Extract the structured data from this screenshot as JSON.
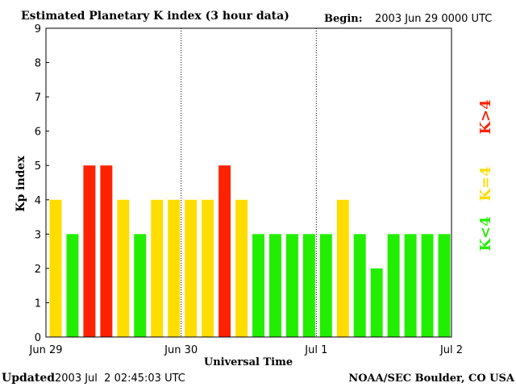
{
  "chart_data": {
    "type": "bar",
    "title": "Estimated Planetary K index (3 hour data)",
    "begin_label": "Begin:",
    "begin_value": "2003 Jun 29 0000 UTC",
    "xlabel": "Universal Time",
    "ylabel": "Kp index",
    "ylim": [
      0,
      9
    ],
    "yticks": [
      "0",
      "1",
      "2",
      "3",
      "4",
      "5",
      "6",
      "7",
      "8",
      "9"
    ],
    "xticks": [
      "Jun 29",
      "Jun 30",
      "Jul 1",
      "Jul 2"
    ],
    "values": [
      4,
      3,
      5,
      5,
      4,
      3,
      4,
      4,
      4,
      4,
      5,
      4,
      3,
      3,
      3,
      3,
      3,
      4,
      3,
      2,
      3,
      3,
      3,
      3
    ],
    "legend": [
      {
        "label": "K>4",
        "color": "#ff2200"
      },
      {
        "label": "K=4",
        "color": "#ffdd00"
      },
      {
        "label": "K<4",
        "color": "#22ee00"
      }
    ],
    "colors": {
      "above": "#ff2200",
      "equal": "#ffdd00",
      "below": "#22ee00"
    },
    "grid": false
  },
  "footer": {
    "updated_label": "Updated",
    "updated_value": "2003 Jul  2 02:45:03 UTC",
    "source": "NOAA/SEC Boulder, CO USA"
  }
}
